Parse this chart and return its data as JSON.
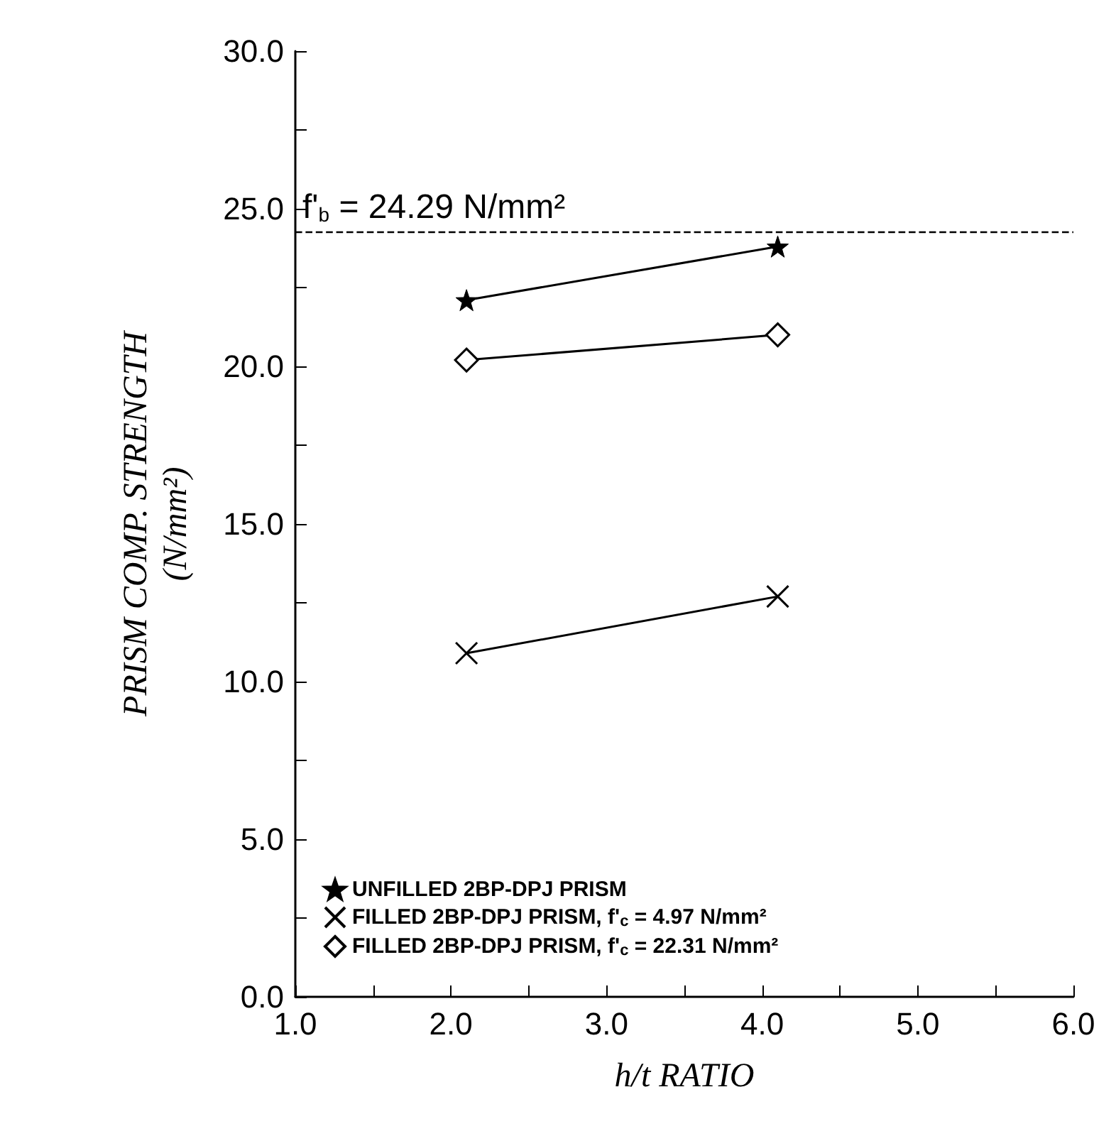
{
  "chart_data": {
    "type": "line",
    "xlabel": "h/t RATIO",
    "ylabel": "PRISM COMP. STRENGTH\n(N/mm²)",
    "xlim": [
      1,
      6
    ],
    "ylim": [
      0,
      30
    ],
    "xticks": [
      {
        "value": 1,
        "label": "1.0"
      },
      {
        "value": 1.5,
        "label": null
      },
      {
        "value": 2,
        "label": "2.0"
      },
      {
        "value": 2.5,
        "label": null
      },
      {
        "value": 3,
        "label": "3.0"
      },
      {
        "value": 3.5,
        "label": null
      },
      {
        "value": 4,
        "label": "4.0"
      },
      {
        "value": 4.5,
        "label": null
      },
      {
        "value": 5,
        "label": "5.0"
      },
      {
        "value": 5.5,
        "label": null
      },
      {
        "value": 6,
        "label": "6.0"
      }
    ],
    "yticks": [
      {
        "value": 0,
        "label": "0.0"
      },
      {
        "value": 2.5,
        "label": null
      },
      {
        "value": 5,
        "label": "5.0"
      },
      {
        "value": 7.5,
        "label": null
      },
      {
        "value": 10,
        "label": "10.0"
      },
      {
        "value": 12.5,
        "label": null
      },
      {
        "value": 15,
        "label": "15.0"
      },
      {
        "value": 17.5,
        "label": null
      },
      {
        "value": 20,
        "label": "20.0"
      },
      {
        "value": 22.5,
        "label": null
      },
      {
        "value": 25,
        "label": "25.0"
      },
      {
        "value": 27.5,
        "label": null
      },
      {
        "value": 30,
        "label": "30.0"
      }
    ],
    "grid": false,
    "legend": "bottom left",
    "line_style": "solid",
    "x": [
      2.1,
      4.1
    ],
    "series": [
      {
        "name": "UNFILLED 2BP-DPJ PRISM",
        "color": "#000000",
        "marker": "star",
        "values": [
          22.1,
          23.8
        ]
      },
      {
        "name": "FILLED 2BP-DPJ PRISM, f'$_{c}$ = 4.97 N/mm²",
        "color": "#000000",
        "marker": "cross",
        "values": [
          10.9,
          12.7
        ]
      },
      {
        "name": "FILLED 2BP-DPJ PRISM, f'$_{c}$ = 22.31 N/mm²",
        "color": "#000000",
        "marker": "diamond",
        "values": [
          20.2,
          21.0
        ]
      }
    ],
    "ref_lines": [
      {
        "axis": "y",
        "value": 24.29,
        "label": "f'$_{b}$ = 24.29 N/mm²",
        "line_style": "dashed",
        "color": "#000000"
      }
    ]
  }
}
